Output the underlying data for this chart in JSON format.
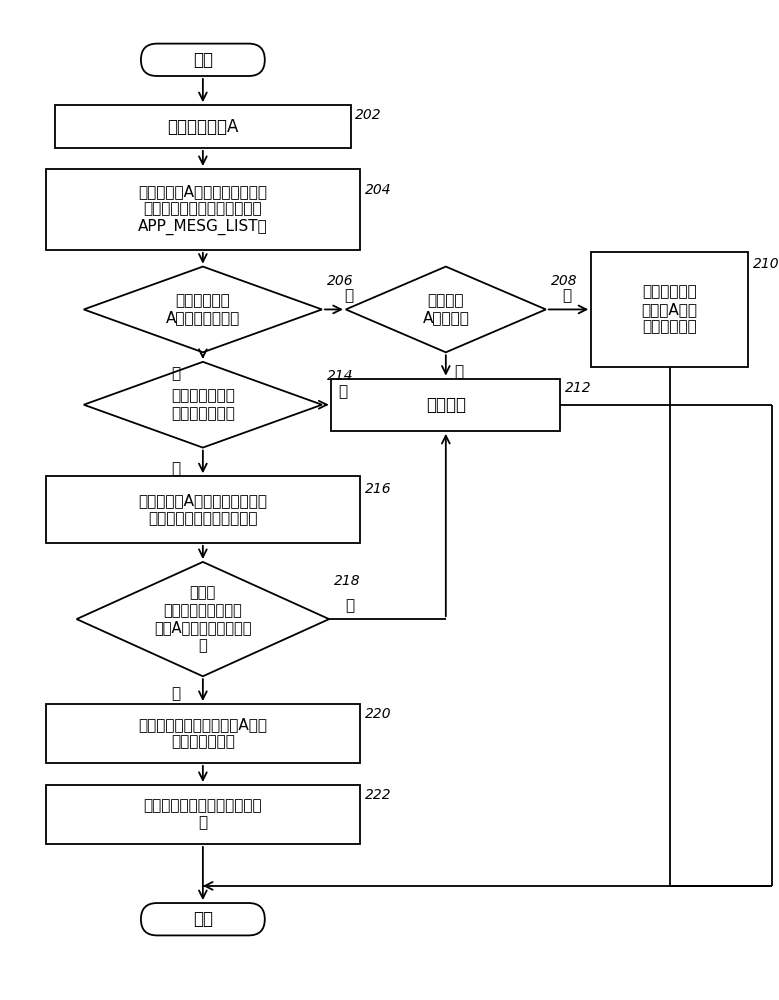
{
  "bg_color": "#ffffff",
  "lc": "#000000",
  "tc": "#000000",
  "nodes": {
    "start": {
      "text": "开始"
    },
    "n202": {
      "text": "打开应用程序A",
      "label": "202"
    },
    "n204": {
      "text": "将应用程序A的服务、进程、和\n应用程序名称对应添加到链表\nAPP_MESG_LIST中",
      "label": "204"
    },
    "n206": {
      "text": "判断应用程序\nA是否在前台运行",
      "label": "206"
    },
    "n208": {
      "text": "应用程序\nA是否退出",
      "label": "208"
    },
    "n210": {
      "text": "将链表中的应\n用程序A的进\n程和服务删除",
      "label": "210"
    },
    "n214": {
      "text": "判断后台是否有\n应用程序在运行",
      "label": "214"
    },
    "n212": {
      "text": "不做处理",
      "label": "212"
    },
    "n216": {
      "text": "将应用程序A的服务、进程与链\n表中的服务、进程进行比较",
      "label": "216"
    },
    "n218": {
      "text": "判断在\n链表中是否有与应用\n程序A不相关的服务、进\n程",
      "label": "218"
    },
    "n220": {
      "text": "在链表中获取与应用程序A不相\n关的服务、进程",
      "label": "220"
    },
    "n222": {
      "text": "对获取到的服务、进程进行限\n制",
      "label": "222"
    },
    "end": {
      "text": "结束"
    }
  },
  "labels": {
    "206_no": "否",
    "206_yes": "是",
    "208_yes": "是",
    "208_no": "否",
    "214_no": "否",
    "214_yes": "是",
    "218_no": "否",
    "218_yes": "是"
  }
}
